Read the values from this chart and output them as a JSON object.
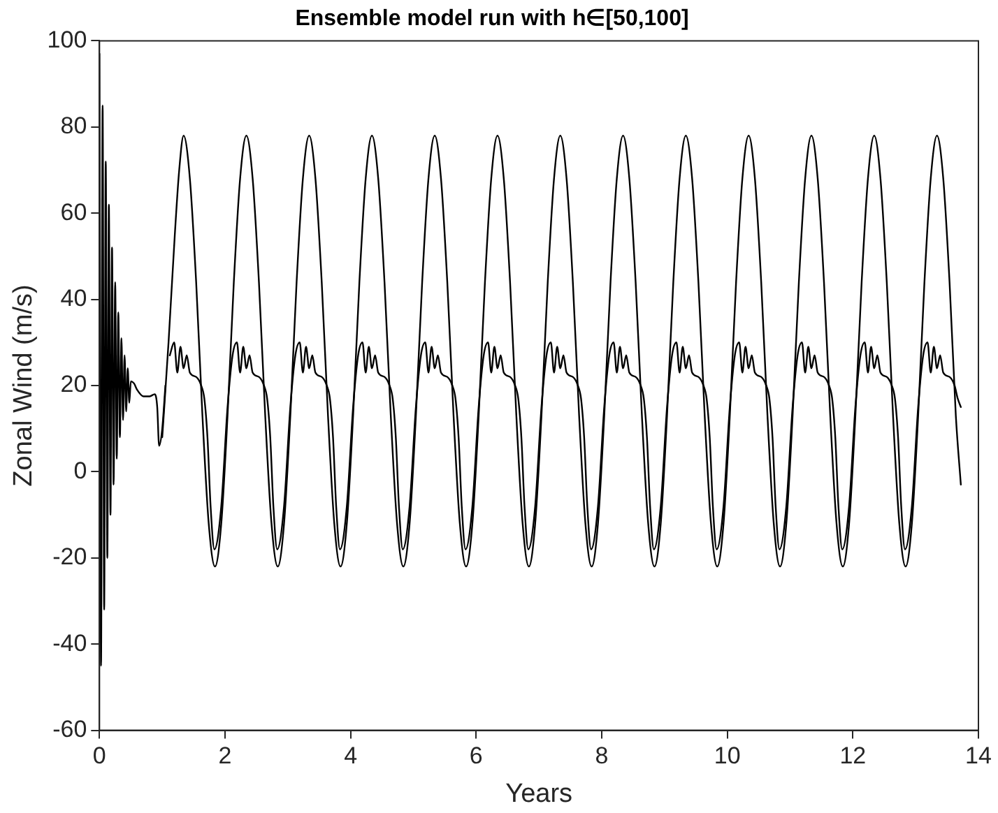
{
  "chart_data": {
    "type": "line",
    "title": "Ensemble model run with h∈[50,100]",
    "xlabel": "Years",
    "ylabel": "Zonal Wind (m/s)",
    "xlim": [
      0,
      14
    ],
    "xticks": [
      0,
      2,
      4,
      6,
      8,
      10,
      12,
      14
    ],
    "ylim": [
      -60,
      100
    ],
    "yticks": [
      -60,
      -40,
      -20,
      0,
      20,
      40,
      60,
      80,
      100
    ],
    "grid": false,
    "series": [
      {
        "color": "#000000",
        "x": [
          0,
          0.025,
          0.05,
          0.075,
          0.1,
          0.125,
          0.15,
          0.175,
          0.2,
          0.225,
          0.25,
          0.275,
          0.3,
          0.325,
          0.35,
          0.375,
          0.4,
          0.425,
          0.45,
          0.475,
          0.5,
          0.55,
          0.6,
          0.7,
          0.8,
          0.88,
          0.92,
          0.95,
          1.0,
          1.05
        ],
        "values": [
          97,
          -45,
          85,
          -32,
          72,
          -20,
          62,
          -10,
          52,
          -3,
          44,
          3,
          37,
          8,
          31,
          12,
          27,
          14,
          24,
          16,
          21,
          20.5,
          19,
          17.5,
          17.5,
          18,
          15,
          6,
          10,
          20
        ]
      },
      {
        "color": "#000000",
        "x": [
          1.0,
          1.1,
          1.2,
          1.27,
          1.34,
          1.44,
          1.54,
          1.64,
          1.74,
          1.84,
          1.94,
          2.04,
          2.14,
          2.24,
          2.34,
          2.44,
          2.54,
          2.64,
          2.74,
          2.84,
          2.94,
          3.04,
          3.14,
          3.24,
          3.34,
          3.44,
          3.54,
          3.64,
          3.74,
          3.84,
          3.94,
          4.04,
          4.14,
          4.24,
          4.34,
          4.44,
          4.54,
          4.64,
          4.74,
          4.84,
          4.94,
          5.04,
          5.14,
          5.24,
          5.34,
          5.44,
          5.54,
          5.64,
          5.74,
          5.84,
          5.94,
          6.04,
          6.14,
          6.24,
          6.34,
          6.44,
          6.54,
          6.64,
          6.74,
          6.84,
          6.94,
          7.04,
          7.14,
          7.24,
          7.34,
          7.44,
          7.54,
          7.64,
          7.74,
          7.84,
          7.94,
          8.04,
          8.14,
          8.24,
          8.34,
          8.44,
          8.54,
          8.64,
          8.74,
          8.84,
          8.94,
          9.04,
          9.14,
          9.24,
          9.34,
          9.44,
          9.54,
          9.64,
          9.74,
          9.84,
          9.94,
          10.04,
          10.14,
          10.24,
          10.34,
          10.44,
          10.54,
          10.64,
          10.74,
          10.84,
          10.94,
          11.04,
          11.14,
          11.24,
          11.34,
          11.44,
          11.54,
          11.64,
          11.74,
          11.84,
          11.94,
          12.04,
          12.14,
          12.24,
          12.34,
          12.44,
          12.54,
          12.64,
          12.74,
          12.84,
          12.94,
          13.04,
          13.14,
          13.24,
          13.34,
          13.44,
          13.54,
          13.64,
          13.72
        ],
        "values": [
          8,
          30,
          55,
          70,
          78,
          68,
          44,
          13,
          -12,
          -22,
          -12,
          13,
          44,
          68,
          78,
          68,
          44,
          13,
          -12,
          -22,
          -12,
          13,
          44,
          68,
          78,
          68,
          44,
          13,
          -12,
          -22,
          -12,
          13,
          44,
          68,
          78,
          68,
          44,
          13,
          -12,
          -22,
          -12,
          13,
          44,
          68,
          78,
          68,
          44,
          13,
          -12,
          -22,
          -12,
          13,
          44,
          68,
          78,
          68,
          44,
          13,
          -12,
          -22,
          -12,
          13,
          44,
          68,
          78,
          68,
          44,
          13,
          -12,
          -22,
          -12,
          13,
          44,
          68,
          78,
          68,
          44,
          13,
          -12,
          -22,
          -12,
          13,
          44,
          68,
          78,
          68,
          44,
          13,
          -12,
          -22,
          -12,
          13,
          44,
          68,
          78,
          68,
          44,
          13,
          -12,
          -22,
          -12,
          13,
          44,
          68,
          78,
          68,
          44,
          13,
          -12,
          -22,
          -12,
          13,
          44,
          68,
          78,
          68,
          44,
          13,
          -12,
          -22,
          -12,
          13,
          44,
          68,
          78,
          68,
          44,
          13,
          -3
        ]
      },
      {
        "color": "#000000",
        "x": [
          1.12,
          1.19,
          1.24,
          1.29,
          1.34,
          1.39,
          1.44,
          1.54,
          1.62,
          1.67,
          1.72,
          1.77,
          1.83,
          1.94,
          2.04,
          2.12,
          2.19,
          2.24,
          2.29,
          2.34,
          2.39,
          2.44,
          2.54,
          2.62,
          2.67,
          2.72,
          2.77,
          2.83,
          2.94,
          3.04,
          3.12,
          3.19,
          3.24,
          3.29,
          3.34,
          3.39,
          3.44,
          3.54,
          3.62,
          3.67,
          3.72,
          3.77,
          3.83,
          3.94,
          4.04,
          4.12,
          4.19,
          4.24,
          4.29,
          4.34,
          4.39,
          4.44,
          4.54,
          4.62,
          4.67,
          4.72,
          4.77,
          4.83,
          4.94,
          5.04,
          5.12,
          5.19,
          5.24,
          5.29,
          5.34,
          5.39,
          5.44,
          5.54,
          5.62,
          5.67,
          5.72,
          5.77,
          5.83,
          5.94,
          6.04,
          6.12,
          6.19,
          6.24,
          6.29,
          6.34,
          6.39,
          6.44,
          6.54,
          6.62,
          6.67,
          6.72,
          6.77,
          6.83,
          6.94,
          7.04,
          7.12,
          7.19,
          7.24,
          7.29,
          7.34,
          7.39,
          7.44,
          7.54,
          7.62,
          7.67,
          7.72,
          7.77,
          7.83,
          7.94,
          8.04,
          8.12,
          8.19,
          8.24,
          8.29,
          8.34,
          8.39,
          8.44,
          8.54,
          8.62,
          8.67,
          8.72,
          8.77,
          8.83,
          8.94,
          9.04,
          9.12,
          9.19,
          9.24,
          9.29,
          9.34,
          9.39,
          9.44,
          9.54,
          9.62,
          9.67,
          9.72,
          9.77,
          9.83,
          9.94,
          10.04,
          10.12,
          10.19,
          10.24,
          10.29,
          10.34,
          10.39,
          10.44,
          10.54,
          10.62,
          10.67,
          10.72,
          10.77,
          10.83,
          10.94,
          11.04,
          11.12,
          11.19,
          11.24,
          11.29,
          11.34,
          11.39,
          11.44,
          11.54,
          11.62,
          11.67,
          11.72,
          11.77,
          11.83,
          11.94,
          12.04,
          12.12,
          12.19,
          12.24,
          12.29,
          12.34,
          12.39,
          12.44,
          12.54,
          12.62,
          12.67,
          12.72,
          12.77,
          12.83,
          12.94,
          13.04,
          13.12,
          13.19,
          13.24,
          13.29,
          13.34,
          13.39,
          13.44,
          13.54,
          13.62,
          13.67,
          13.72
        ],
        "values": [
          27,
          30,
          23,
          29,
          24,
          27,
          23,
          22,
          20,
          17,
          8,
          -8,
          -18,
          -8,
          15,
          27,
          30,
          23,
          29,
          24,
          27,
          23,
          22,
          20,
          17,
          8,
          -8,
          -18,
          -8,
          15,
          27,
          30,
          23,
          29,
          24,
          27,
          23,
          22,
          20,
          17,
          8,
          -8,
          -18,
          -8,
          15,
          27,
          30,
          23,
          29,
          24,
          27,
          23,
          22,
          20,
          17,
          8,
          -8,
          -18,
          -8,
          15,
          27,
          30,
          23,
          29,
          24,
          27,
          23,
          22,
          20,
          17,
          8,
          -8,
          -18,
          -8,
          15,
          27,
          30,
          23,
          29,
          24,
          27,
          23,
          22,
          20,
          17,
          8,
          -8,
          -18,
          -8,
          15,
          27,
          30,
          23,
          29,
          24,
          27,
          23,
          22,
          20,
          17,
          8,
          -8,
          -18,
          -8,
          15,
          27,
          30,
          23,
          29,
          24,
          27,
          23,
          22,
          20,
          17,
          8,
          -8,
          -18,
          -8,
          15,
          27,
          30,
          23,
          29,
          24,
          27,
          23,
          22,
          20,
          17,
          8,
          -8,
          -18,
          -8,
          15,
          27,
          30,
          23,
          29,
          24,
          27,
          23,
          22,
          20,
          17,
          8,
          -8,
          -18,
          -8,
          15,
          27,
          30,
          23,
          29,
          24,
          27,
          23,
          22,
          20,
          17,
          8,
          -8,
          -18,
          -8,
          15,
          27,
          30,
          23,
          29,
          24,
          27,
          23,
          22,
          20,
          17,
          8,
          -8,
          -18,
          -8,
          15,
          27,
          30,
          23,
          29,
          24,
          27,
          23,
          22,
          20,
          17,
          15
        ]
      }
    ]
  }
}
